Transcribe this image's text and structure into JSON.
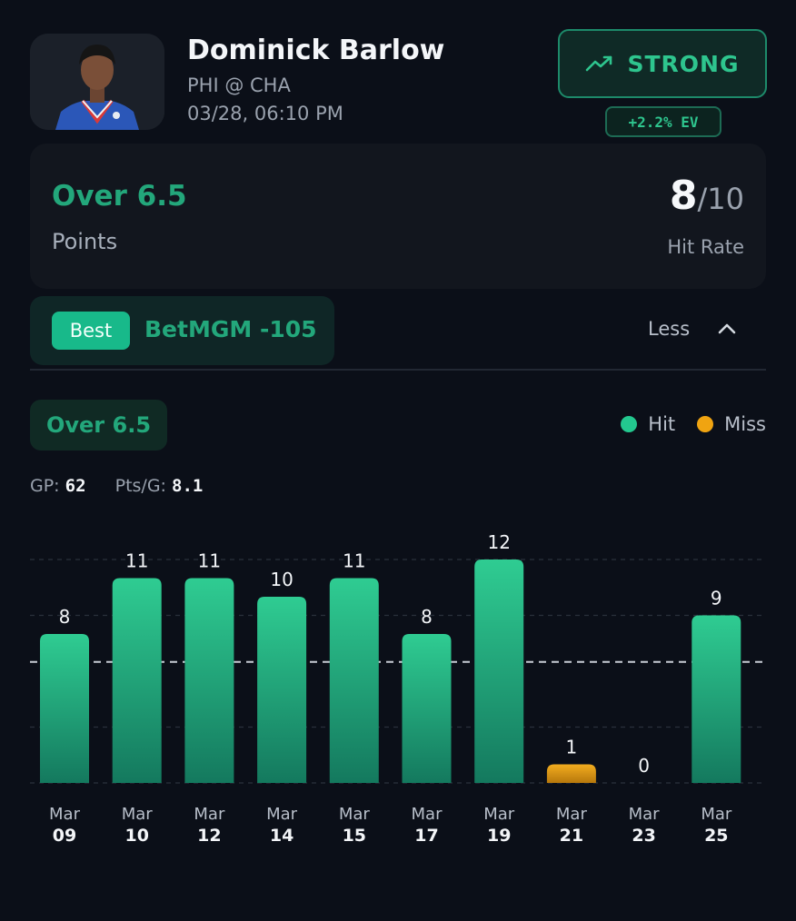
{
  "player": {
    "name": "Dominick Barlow",
    "matchup": "PHI @ CHA",
    "datetime": "03/28, 06:10 PM"
  },
  "rating": {
    "label": "STRONG",
    "ev": "+2.2% EV",
    "icon": "trending-up-icon"
  },
  "prop": {
    "line": "Over 6.5",
    "stat": "Points",
    "hits": "8",
    "total": "/10",
    "hit_label": "Hit Rate"
  },
  "book": {
    "badge": "Best",
    "line": "BetMGM -105",
    "toggle_label": "Less",
    "toggle_icon": "chevron-up-icon"
  },
  "legend": {
    "hit": "Hit",
    "miss": "Miss"
  },
  "stats": {
    "gp_label": "GP:",
    "gp_value": "62",
    "ppg_label": "Pts/G:",
    "ppg_value": "8.1"
  },
  "colors": {
    "hit": "#23c88f",
    "miss": "#f0a411",
    "accent": "#23a77b",
    "background": "#0b0f18"
  },
  "chart_data": {
    "type": "bar",
    "title": "Over 6.5",
    "categories": [
      "Mar 09",
      "Mar 10",
      "Mar 12",
      "Mar 14",
      "Mar 15",
      "Mar 17",
      "Mar 19",
      "Mar 21",
      "Mar 23",
      "Mar 25"
    ],
    "category_months": [
      "Mar",
      "Mar",
      "Mar",
      "Mar",
      "Mar",
      "Mar",
      "Mar",
      "Mar",
      "Mar",
      "Mar"
    ],
    "category_days": [
      "09",
      "10",
      "12",
      "14",
      "15",
      "17",
      "19",
      "21",
      "23",
      "25"
    ],
    "values": [
      8,
      11,
      11,
      10,
      11,
      8,
      12,
      1,
      0,
      9
    ],
    "outcomes": [
      "hit",
      "hit",
      "hit",
      "hit",
      "hit",
      "hit",
      "hit",
      "miss",
      "miss",
      "hit"
    ],
    "threshold": 6.5,
    "ylim": [
      0,
      12
    ],
    "grid": true,
    "legend_position": "top-right"
  }
}
